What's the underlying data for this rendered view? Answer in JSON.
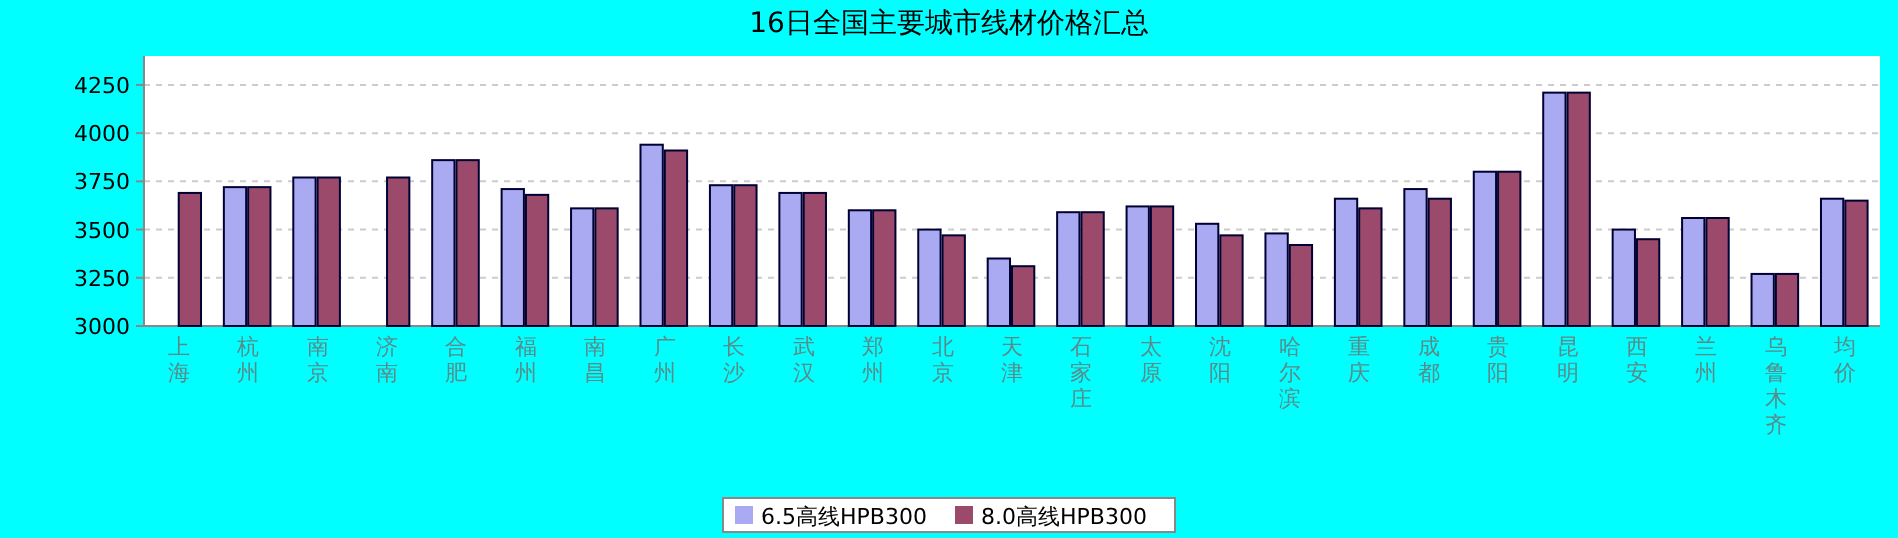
{
  "chart_data": {
    "type": "bar",
    "title": "16日全国主要城市线材价格汇总",
    "categories": [
      "上海",
      "杭州",
      "南京",
      "济南",
      "合肥",
      "福州",
      "南昌",
      "广州",
      "长沙",
      "武汉",
      "郑州",
      "北京",
      "天津",
      "石家庄",
      "太原",
      "沈阳",
      "哈尔滨",
      "重庆",
      "成都",
      "贵阳",
      "昆明",
      "西安",
      "兰州",
      "乌鲁木齐",
      "均价"
    ],
    "series": [
      {
        "name": "6.5高线HPB300",
        "color": "#aaaaf2",
        "values": [
          null,
          3720,
          3770,
          null,
          3860,
          3710,
          3610,
          3940,
          3730,
          3690,
          3600,
          3500,
          3350,
          3590,
          3620,
          3530,
          3480,
          3660,
          3710,
          3800,
          4210,
          3500,
          3560,
          3270,
          3660
        ]
      },
      {
        "name": "8.0高线HPB300",
        "color": "#9c4a6c",
        "values": [
          3690,
          3720,
          3770,
          3770,
          3860,
          3680,
          3610,
          3910,
          3730,
          3690,
          3600,
          3470,
          3310,
          3590,
          3620,
          3470,
          3420,
          3610,
          3660,
          3800,
          4210,
          3450,
          3560,
          3270,
          3650
        ]
      }
    ],
    "ylim": [
      3000,
      4400
    ],
    "yticks": [
      3000,
      3250,
      3500,
      3750,
      4000,
      4250
    ],
    "grid": "y",
    "legend": "bottom"
  }
}
